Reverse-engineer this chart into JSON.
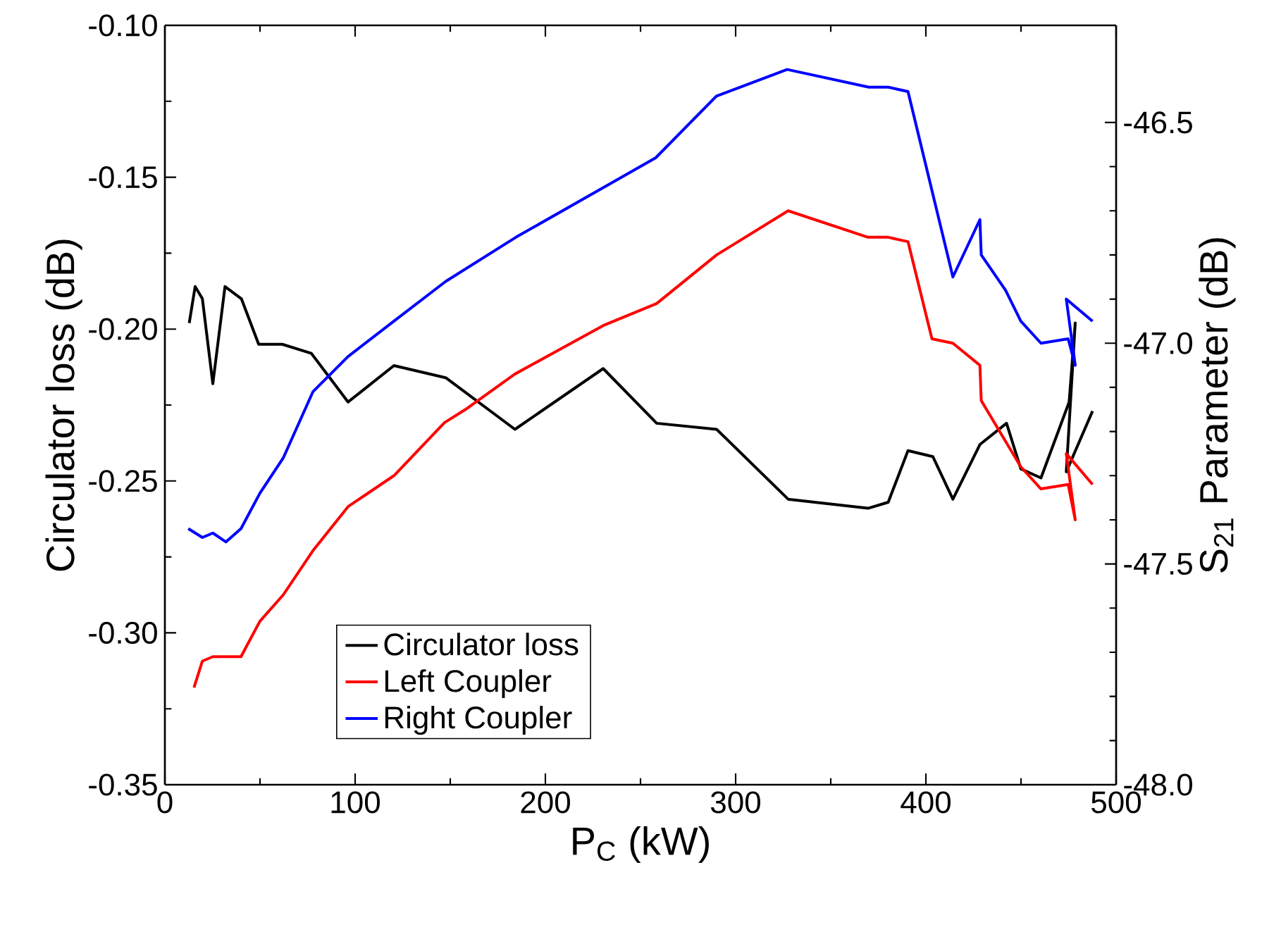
{
  "chart_data": {
    "type": "line",
    "xlabel": "P$_{C}$ (kW)",
    "ylabel": "Circulator loss (dB)",
    "y2label": "S$_{21}$ Parameter (dB)",
    "xlim": [
      0,
      500
    ],
    "xticks": [
      0,
      100,
      200,
      300,
      400,
      500
    ],
    "ylim": [
      -0.35,
      -0.1
    ],
    "yticks": [
      {
        "value": -0.35,
        "label": "-0.35"
      },
      {
        "value": -0.3,
        "label": "-0.30"
      },
      {
        "value": -0.25,
        "label": "-0.25"
      },
      {
        "value": -0.2,
        "label": "-0.20"
      },
      {
        "value": -0.15,
        "label": "-0.15"
      },
      {
        "value": -0.1,
        "label": "-0.10"
      }
    ],
    "y2lim": [
      -48.0,
      -46.28
    ],
    "y2ticks": [
      {
        "value": -48.0,
        "label": "-48.0"
      },
      {
        "value": -47.5,
        "label": "-47.5"
      },
      {
        "value": -47.0,
        "label": "-47.0"
      },
      {
        "value": -46.5,
        "label": "-46.5"
      }
    ],
    "legend": "bottom left",
    "series": [
      {
        "name": "Circulator loss",
        "color": "#000000",
        "axis": "y",
        "x": [
          12.8,
          15.9,
          19.7,
          25.2,
          31.6,
          40.2,
          49.3,
          61.7,
          77,
          96.3,
          120.4,
          147.6,
          184,
          230.4,
          258.5,
          290,
          327.6,
          369.6,
          380.2,
          390.6,
          403.7,
          414.2,
          428.4,
          442.4,
          449.9,
          460.5,
          475.3,
          478.5,
          473.8,
          487.6
        ],
        "values": [
          -0.198,
          -0.186,
          -0.19,
          -0.218,
          -0.186,
          -0.19,
          -0.205,
          -0.205,
          -0.208,
          -0.224,
          -0.212,
          -0.216,
          -0.233,
          -0.213,
          -0.231,
          -0.233,
          -0.256,
          -0.259,
          -0.257,
          -0.24,
          -0.242,
          -0.256,
          -0.238,
          -0.231,
          -0.246,
          -0.249,
          -0.224,
          -0.198,
          -0.247,
          -0.227
        ]
      },
      {
        "name": "Left Coupler",
        "color": "#ff0000",
        "axis": "y2",
        "x": [
          15.3,
          19.7,
          25.2,
          40,
          49.9,
          62.2,
          77.8,
          96.3,
          120.4,
          146.9,
          158,
          183.9,
          230.4,
          258.5,
          290,
          327.6,
          369.6,
          380.2,
          390.6,
          403.2,
          414.2,
          428.4,
          429.1,
          449.9,
          460.5,
          474.8,
          478.5,
          473.8,
          487.6
        ],
        "values": [
          -47.78,
          -47.72,
          -47.71,
          -47.71,
          -47.63,
          -47.57,
          -47.47,
          -47.37,
          -47.3,
          -47.18,
          -47.15,
          -47.07,
          -46.96,
          -46.91,
          -46.8,
          -46.7,
          -46.76,
          -46.76,
          -46.77,
          -46.99,
          -47.0,
          -47.05,
          -47.13,
          -47.28,
          -47.33,
          -47.32,
          -47.4,
          -47.25,
          -47.32
        ]
      },
      {
        "name": "Right Coupler",
        "color": "#0000ff",
        "axis": "y2",
        "x": [
          12.3,
          19.7,
          25.2,
          32.1,
          40,
          49.9,
          62.2,
          77.8,
          96.3,
          120.4,
          147.6,
          184.5,
          258,
          290,
          327.1,
          370,
          380.2,
          390.6,
          414.2,
          428.4,
          429.1,
          441.9,
          449.9,
          460.5,
          474.8,
          478.5,
          473.8,
          487.6
        ],
        "values": [
          -47.42,
          -47.44,
          -47.43,
          -47.45,
          -47.42,
          -47.34,
          -47.26,
          -47.11,
          -47.03,
          -46.95,
          -46.86,
          -46.76,
          -46.58,
          -46.44,
          -46.38,
          -46.42,
          -46.42,
          -46.43,
          -46.85,
          -46.72,
          -46.8,
          -46.88,
          -46.95,
          -47.0,
          -46.99,
          -47.05,
          -46.9,
          -46.95
        ]
      }
    ]
  }
}
